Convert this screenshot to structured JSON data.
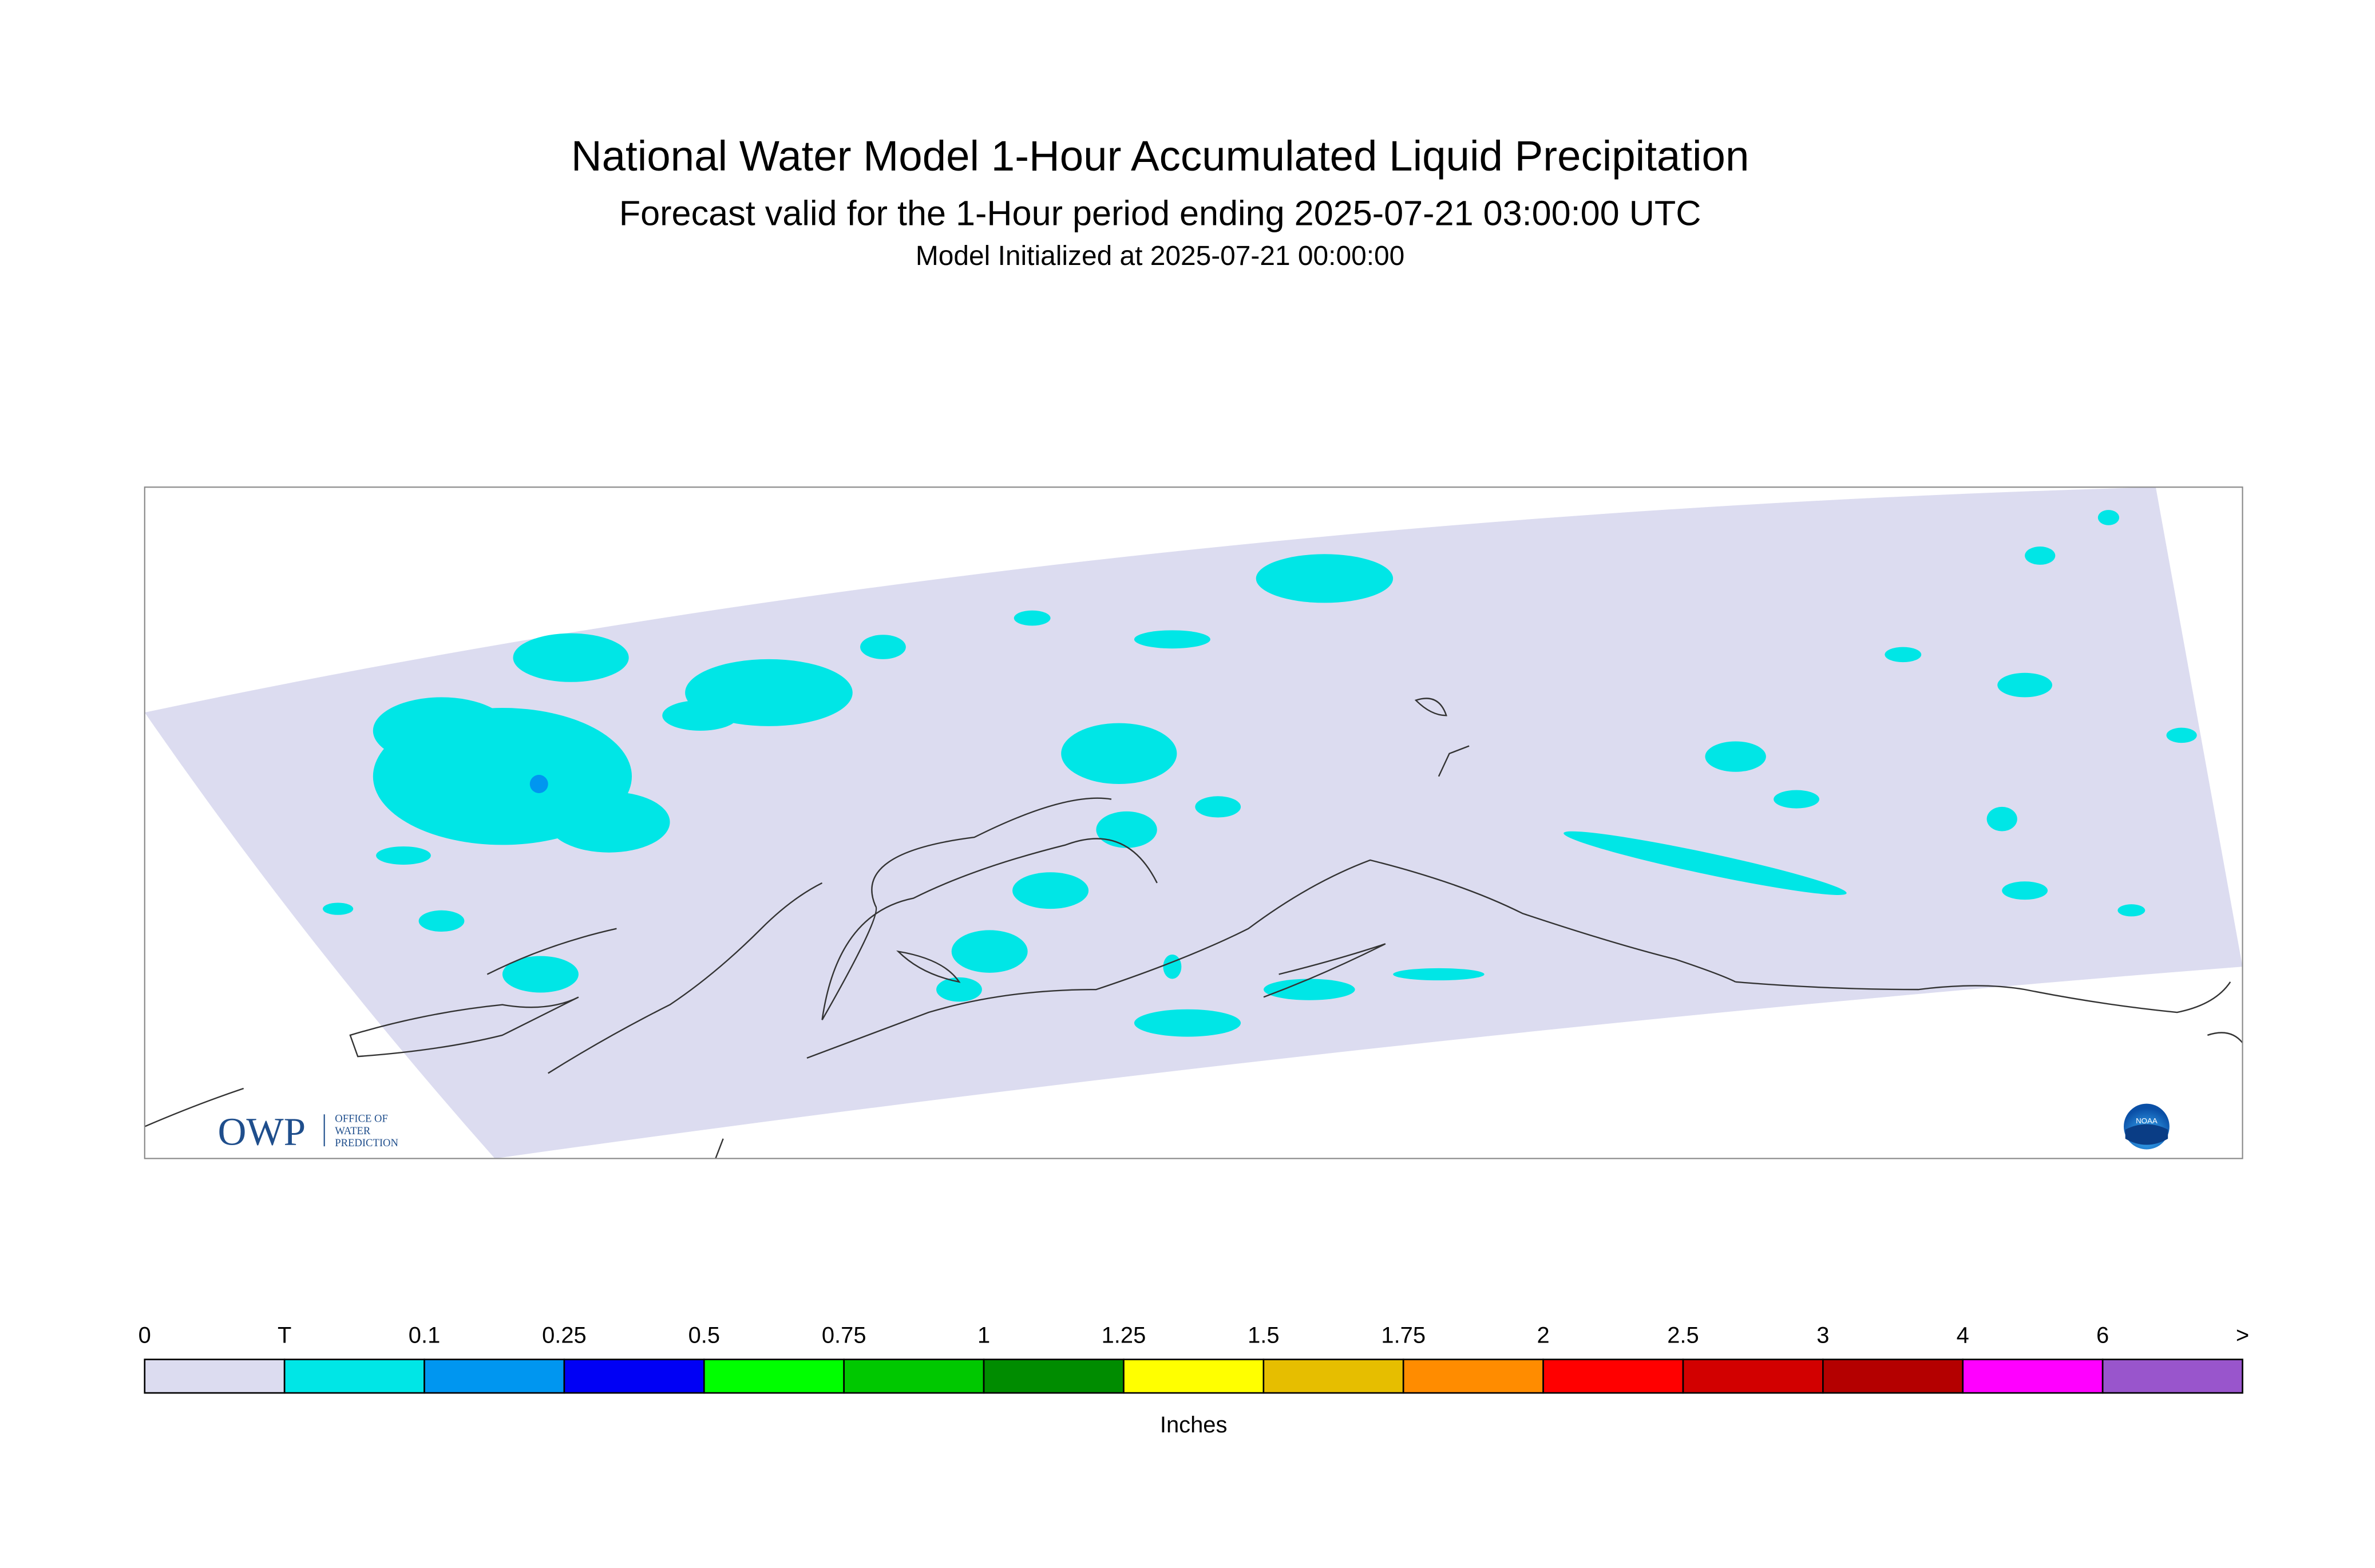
{
  "header": {
    "title": "National Water Model 1-Hour Accumulated Liquid Precipitation",
    "subtitle": "Forecast valid for the 1-Hour period ending 2025-07-21 03:00:00 UTC",
    "initialized": "Model Initialized at 2025-07-21 00:00:00"
  },
  "logo": {
    "owp": "OWP",
    "office": [
      "OFFICE OF",
      "WATER",
      "PREDICTION"
    ],
    "noaa": "NOAA"
  },
  "legend": {
    "unit": "Inches",
    "labels": [
      "0",
      "T",
      "0.1",
      "0.25",
      "0.5",
      "0.75",
      "1",
      "1.25",
      "1.5",
      "1.75",
      "2",
      "2.5",
      "3",
      "4",
      "6",
      ">"
    ],
    "colors": [
      "#dcdcf0",
      "#00e6e6",
      "#0096f0",
      "#0000f5",
      "#00ff00",
      "#00c800",
      "#008c00",
      "#ffff00",
      "#e6be00",
      "#ff8c00",
      "#ff0000",
      "#d20000",
      "#b40000",
      "#ff00ff",
      "#9955cc"
    ]
  }
}
